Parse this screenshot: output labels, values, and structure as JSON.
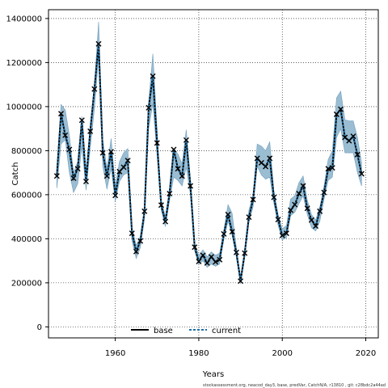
{
  "chart_data": {
    "type": "line",
    "xlabel": "Years",
    "ylabel": "Catch",
    "xlim": [
      1944,
      2023
    ],
    "ylim": [
      -50000,
      1440000
    ],
    "xticks": [
      1960,
      1980,
      2000,
      2020
    ],
    "yticks": [
      0,
      200000,
      400000,
      600000,
      800000,
      1000000,
      1200000,
      1400000
    ],
    "grid": true,
    "legend_position": "bottom",
    "footer": "stockassessment.org, neacod_day3, base, predVar, CatchN/A, r13810 , git: c28bdc2a44ad",
    "colors": {
      "base": "#000000",
      "current": "#1f6fa5",
      "band": "#9bbdd2",
      "band_edge": "#6f9fbf"
    },
    "x": [
      1946,
      1947,
      1948,
      1949,
      1950,
      1951,
      1952,
      1953,
      1954,
      1955,
      1956,
      1957,
      1958,
      1959,
      1960,
      1961,
      1962,
      1963,
      1964,
      1965,
      1966,
      1967,
      1968,
      1969,
      1970,
      1971,
      1972,
      1973,
      1974,
      1975,
      1976,
      1977,
      1978,
      1979,
      1980,
      1981,
      1982,
      1983,
      1984,
      1985,
      1986,
      1987,
      1988,
      1989,
      1990,
      1991,
      1992,
      1993,
      1994,
      1995,
      1996,
      1997,
      1998,
      1999,
      2000,
      2001,
      2002,
      2003,
      2004,
      2005,
      2006,
      2007,
      2008,
      2009,
      2010,
      2011,
      2012,
      2013,
      2014,
      2015,
      2016,
      2017,
      2018,
      2019
    ],
    "series": [
      {
        "name": "base",
        "values": [
          685000,
          968000,
          870000,
          805000,
          675000,
          718000,
          938000,
          660000,
          888000,
          1080000,
          1285000,
          790000,
          685000,
          795000,
          597000,
          705000,
          725000,
          755000,
          425000,
          342000,
          390000,
          525000,
          995000,
          1138000,
          835000,
          553000,
          478000,
          605000,
          805000,
          718000,
          685000,
          848000,
          640000,
          362000,
          297000,
          325000,
          290000,
          318000,
          295000,
          305000,
          422000,
          510000,
          432000,
          338000,
          208000,
          335000,
          498000,
          578000,
          765000,
          745000,
          728000,
          765000,
          588000,
          487000,
          415000,
          425000,
          530000,
          555000,
          605000,
          640000,
          538000,
          485000,
          458000,
          525000,
          610000,
          718000,
          722000,
          965000,
          988000,
          860000,
          845000,
          865000,
          782000,
          695000
        ]
      },
      {
        "name": "current",
        "values": [
          685000,
          968000,
          870000,
          805000,
          675000,
          718000,
          938000,
          660000,
          888000,
          1080000,
          1285000,
          790000,
          685000,
          795000,
          597000,
          705000,
          725000,
          755000,
          425000,
          342000,
          390000,
          525000,
          995000,
          1138000,
          835000,
          553000,
          478000,
          605000,
          805000,
          718000,
          685000,
          848000,
          640000,
          362000,
          297000,
          325000,
          290000,
          318000,
          295000,
          305000,
          422000,
          510000,
          432000,
          338000,
          208000,
          335000,
          498000,
          578000,
          765000,
          745000,
          728000,
          765000,
          588000,
          487000,
          415000,
          425000,
          530000,
          555000,
          605000,
          640000,
          538000,
          485000,
          458000,
          525000,
          610000,
          718000,
          722000,
          965000,
          988000,
          860000,
          845000,
          865000,
          782000,
          695000
        ]
      }
    ],
    "band_upper": [
      720000,
      1010000,
      985000,
      870000,
      700000,
      750000,
      955000,
      710000,
      915000,
      1100000,
      1385000,
      850000,
      720000,
      855000,
      640000,
      750000,
      790000,
      810000,
      450000,
      370000,
      410000,
      540000,
      1020000,
      1240000,
      900000,
      578000,
      500000,
      635000,
      810000,
      785000,
      740000,
      895000,
      670000,
      380000,
      325000,
      350000,
      318000,
      340000,
      325000,
      335000,
      440000,
      555000,
      515000,
      358000,
      225000,
      350000,
      530000,
      600000,
      830000,
      820000,
      800000,
      840000,
      615000,
      510000,
      445000,
      460000,
      580000,
      595000,
      655000,
      685000,
      575000,
      510000,
      485000,
      545000,
      640000,
      760000,
      800000,
      1040000,
      1070000,
      940000,
      935000,
      935000,
      860000,
      745000
    ],
    "band_lower": [
      630000,
      830000,
      850000,
      700000,
      610000,
      650000,
      820000,
      620000,
      810000,
      990000,
      1225000,
      730000,
      625000,
      720000,
      570000,
      660000,
      690000,
      700000,
      390000,
      310000,
      360000,
      490000,
      900000,
      1015000,
      780000,
      530000,
      455000,
      575000,
      680000,
      665000,
      640000,
      725000,
      600000,
      345000,
      285000,
      300000,
      270000,
      285000,
      275000,
      285000,
      395000,
      480000,
      415000,
      315000,
      195000,
      310000,
      475000,
      545000,
      730000,
      690000,
      670000,
      680000,
      560000,
      460000,
      395000,
      405000,
      505000,
      520000,
      560000,
      595000,
      510000,
      450000,
      435000,
      480000,
      580000,
      665000,
      680000,
      860000,
      900000,
      790000,
      790000,
      790000,
      700000,
      640000
    ]
  },
  "legend": {
    "base_label": "base",
    "current_label": "current"
  }
}
